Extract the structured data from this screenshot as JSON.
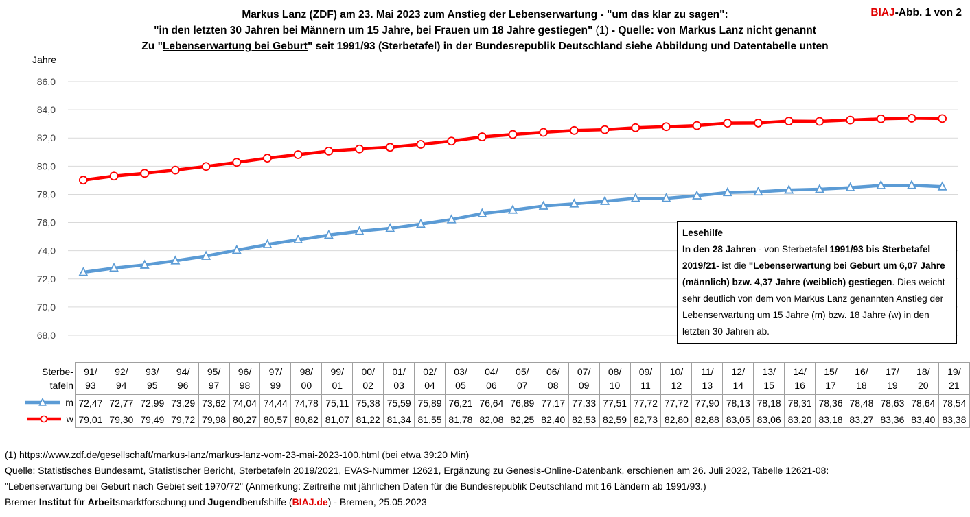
{
  "header": {
    "line1": "Markus Lanz (ZDF) am 23. Mai 2023 zum Anstieg der Lebenserwartung - \"um das klar zu sagen\":",
    "line2_bold_a": "\"in den letzten 30 Jahren bei Männern um 15 Jahre, bei Frauen um 18 Jahre gestiegen\"",
    "line2_normal": " (1) ",
    "line2_bold_b": "- Quelle: von Markus Lanz nicht genannt",
    "line3_a": "Zu \"",
    "line3_u": "Lebenserwartung bei  Geburt",
    "line3_b": "\" seit 1991/93 (Sterbetafel) in der Bundesrepublik Deutschland siehe Abbildung und Datentabelle unten",
    "badge_brand": "BIAJ",
    "badge_rest": "-Abb. 1 von 2"
  },
  "chart_data": {
    "type": "line",
    "ylabel": "Jahre",
    "ylim": [
      68,
      86
    ],
    "yticks": [
      "68,0",
      "70,0",
      "72,0",
      "74,0",
      "76,0",
      "78,0",
      "80,0",
      "82,0",
      "84,0",
      "86,0"
    ],
    "grid": true,
    "table_header": "Sterbe-tafeln",
    "categories": [
      [
        "91/",
        "93"
      ],
      [
        "92/",
        "94"
      ],
      [
        "93/",
        "95"
      ],
      [
        "94/",
        "96"
      ],
      [
        "95/",
        "97"
      ],
      [
        "96/",
        "98"
      ],
      [
        "97/",
        "99"
      ],
      [
        "98/",
        "00"
      ],
      [
        "99/",
        "01"
      ],
      [
        "00/",
        "02"
      ],
      [
        "01/",
        "03"
      ],
      [
        "02/",
        "04"
      ],
      [
        "03/",
        "05"
      ],
      [
        "04/",
        "06"
      ],
      [
        "05/",
        "07"
      ],
      [
        "06/",
        "08"
      ],
      [
        "07/",
        "09"
      ],
      [
        "08/",
        "10"
      ],
      [
        "09/",
        "11"
      ],
      [
        "10/",
        "12"
      ],
      [
        "11/",
        "13"
      ],
      [
        "12/",
        "14"
      ],
      [
        "13/",
        "15"
      ],
      [
        "14/",
        "16"
      ],
      [
        "15/",
        "17"
      ],
      [
        "16/",
        "18"
      ],
      [
        "17/",
        "19"
      ],
      [
        "18/",
        "20"
      ],
      [
        "19/",
        "21"
      ]
    ],
    "series": [
      {
        "name": "m",
        "color": "#5b9bd5",
        "marker": "triangle",
        "values": [
          72.47,
          72.77,
          72.99,
          73.29,
          73.62,
          74.04,
          74.44,
          74.78,
          75.11,
          75.38,
          75.59,
          75.89,
          76.21,
          76.64,
          76.89,
          77.17,
          77.33,
          77.51,
          77.72,
          77.72,
          77.9,
          78.13,
          78.18,
          78.31,
          78.36,
          78.48,
          78.63,
          78.64,
          78.54
        ],
        "labels": [
          "72,47",
          "72,77",
          "72,99",
          "73,29",
          "73,62",
          "74,04",
          "74,44",
          "74,78",
          "75,11",
          "75,38",
          "75,59",
          "75,89",
          "76,21",
          "76,64",
          "76,89",
          "77,17",
          "77,33",
          "77,51",
          "77,72",
          "77,72",
          "77,90",
          "78,13",
          "78,18",
          "78,31",
          "78,36",
          "78,48",
          "78,63",
          "78,64",
          "78,54"
        ]
      },
      {
        "name": "w",
        "color": "#ff0000",
        "marker": "circle",
        "values": [
          79.01,
          79.3,
          79.49,
          79.72,
          79.98,
          80.27,
          80.57,
          80.82,
          81.07,
          81.22,
          81.34,
          81.55,
          81.78,
          82.08,
          82.25,
          82.4,
          82.53,
          82.59,
          82.73,
          82.8,
          82.88,
          83.05,
          83.06,
          83.2,
          83.18,
          83.27,
          83.36,
          83.4,
          83.38
        ],
        "labels": [
          "79,01",
          "79,30",
          "79,49",
          "79,72",
          "79,98",
          "80,27",
          "80,57",
          "80,82",
          "81,07",
          "81,22",
          "81,34",
          "81,55",
          "81,78",
          "82,08",
          "82,25",
          "82,40",
          "82,53",
          "82,59",
          "82,73",
          "82,80",
          "82,88",
          "83,05",
          "83,06",
          "83,20",
          "83,18",
          "83,27",
          "83,36",
          "83,40",
          "83,38"
        ]
      }
    ],
    "annotation": {
      "title": "Lesehilfe",
      "p1_bold": "In den 28 Jahren",
      "p1_normal": " - von Sterbetafel ",
      "p2_bold": "1991/93 bis Sterbetafel 2019/21",
      "p3_normal": "-  ist die ",
      "p4_bold": "\"Lebenserwartung bei Geburt um 6,07 Jahre (männlich) bzw. 4,37 Jahre (weiblich) gestiegen",
      "p5_normal": ". Dies weicht sehr deutlich von dem von Markus Lanz genannten Anstieg der Lebenserwartung um 15 Jahre (m) bzw. 18 Jahre (w) in den letzten 30 Jahren ab."
    }
  },
  "footer": {
    "line1": "(1) https://www.zdf.de/gesellschaft/markus-lanz/markus-lanz-vom-23-mai-2023-100.html (bei etwa 39:20 Min)",
    "line2": "Quelle: Statistisches Bundesamt,  Statistischer Bericht, Sterbetafeln 2019/2021, EVAS-Nummer 12621, Ergänzung zu Genesis-Online-Datenbank, erschienen am 26. Juli 2022, Tabelle 12621-08:",
    "line3": "\"Lebenserwartung bei Geburt nach Gebiet seit 1970/72\" (Anmerkung: Zeitreihe mit jährlichen Daten für die Bundesrepublik Deutschland mit 16 Ländern ab 1991/93.)",
    "line4_a": "Bremer ",
    "line4_b1": "Institut",
    "line4_c": " für ",
    "line4_b2": "Arbeit",
    "line4_d": "smarktforschung und ",
    "line4_b3": "Jugend",
    "line4_e": "berufshilfe (",
    "line4_brand": "BIAJ.de",
    "line4_f": ") - Bremen, 25.05.2023"
  }
}
